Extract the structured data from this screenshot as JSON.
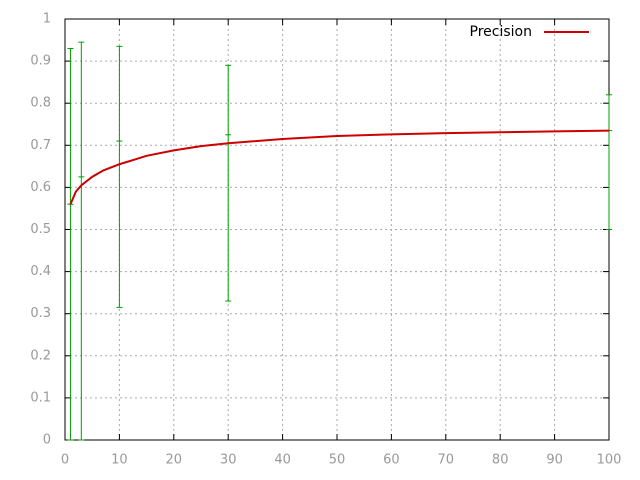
{
  "chart_data": {
    "type": "line",
    "series": [
      {
        "name": "Precision",
        "color": "#cc0000",
        "x": [
          1,
          2,
          3,
          5,
          7,
          10,
          15,
          20,
          25,
          30,
          40,
          50,
          60,
          70,
          80,
          90,
          100
        ],
        "values": [
          0.56,
          0.59,
          0.605,
          0.625,
          0.64,
          0.655,
          0.675,
          0.688,
          0.698,
          0.705,
          0.715,
          0.722,
          0.726,
          0.729,
          0.731,
          0.733,
          0.735
        ]
      }
    ],
    "error_bars": {
      "color": "#00a000",
      "x": [
        1,
        3,
        10,
        30,
        100
      ],
      "y": [
        0.56,
        0.625,
        0.71,
        0.725,
        0.735
      ],
      "low": [
        0,
        0,
        0.315,
        0.33,
        0.5
      ],
      "high": [
        0.93,
        0.945,
        0.935,
        0.89,
        0.82
      ]
    },
    "xlim": [
      0,
      100
    ],
    "xticks": [
      0,
      10,
      20,
      30,
      40,
      50,
      60,
      70,
      80,
      90,
      100
    ],
    "ylim": [
      0,
      1
    ],
    "yticks": [
      0,
      0.1,
      0.2,
      0.3,
      0.4,
      0.5,
      0.6,
      0.7,
      0.8,
      0.9,
      1
    ],
    "grid": true,
    "legend": "top-right"
  }
}
